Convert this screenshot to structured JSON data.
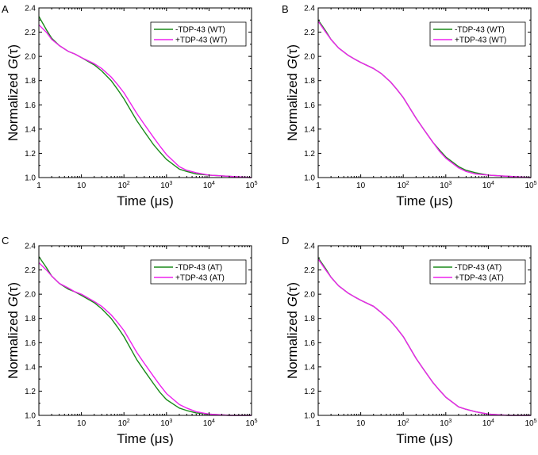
{
  "chart_data": [
    {
      "panel": "A",
      "type": "line",
      "xlabel": "Time (μs)",
      "ylabel": "Normalized G(τ)",
      "x_scale": "log",
      "xlim": [
        1,
        100000
      ],
      "ylim": [
        1.0,
        2.4
      ],
      "xticks": [
        "1",
        "10",
        "10^2",
        "10^3",
        "10^4",
        "10^5"
      ],
      "yticks": [
        "1.0",
        "1.2",
        "1.4",
        "1.6",
        "1.8",
        "2.0",
        "2.2",
        "2.4"
      ],
      "legend_position": "top-right",
      "grid": false,
      "series": [
        {
          "name": "-TDP-43 (WT)",
          "color": "#1a8a1a",
          "x": [
            1,
            1.5,
            2,
            3,
            5,
            7,
            10,
            20,
            30,
            50,
            70,
            100,
            200,
            300,
            500,
            700,
            1000,
            2000,
            3000,
            5000,
            10000,
            30000,
            100000
          ],
          "y": [
            2.33,
            2.22,
            2.15,
            2.09,
            2.04,
            2.02,
            1.99,
            1.93,
            1.88,
            1.8,
            1.73,
            1.65,
            1.47,
            1.38,
            1.27,
            1.21,
            1.15,
            1.07,
            1.05,
            1.03,
            1.02,
            1.01,
            1.0
          ]
        },
        {
          "name": "+TDP-43 (WT)",
          "color": "#ee22ee",
          "x": [
            1,
            1.5,
            2,
            3,
            5,
            7,
            10,
            20,
            30,
            50,
            70,
            100,
            200,
            300,
            500,
            700,
            1000,
            2000,
            3000,
            5000,
            10000,
            30000,
            100000
          ],
          "y": [
            2.26,
            2.2,
            2.14,
            2.09,
            2.04,
            2.02,
            1.99,
            1.94,
            1.9,
            1.83,
            1.77,
            1.7,
            1.53,
            1.44,
            1.33,
            1.26,
            1.19,
            1.09,
            1.06,
            1.04,
            1.02,
            1.01,
            1.0
          ]
        }
      ]
    },
    {
      "panel": "B",
      "type": "line",
      "xlabel": "Time (μs)",
      "ylabel": "Normalized G(τ)",
      "x_scale": "log",
      "xlim": [
        1,
        100000
      ],
      "ylim": [
        1.0,
        2.4
      ],
      "xticks": [
        "1",
        "10",
        "10^2",
        "10^3",
        "10^4",
        "10^5"
      ],
      "yticks": [
        "1.0",
        "1.2",
        "1.4",
        "1.6",
        "1.8",
        "2.0",
        "2.2",
        "2.4"
      ],
      "legend_position": "top-right",
      "grid": false,
      "series": [
        {
          "name": "-TDP-43 (WT)",
          "color": "#1a8a1a",
          "x": [
            1,
            1.5,
            2,
            3,
            5,
            7,
            10,
            20,
            30,
            50,
            70,
            100,
            200,
            300,
            500,
            700,
            1000,
            2000,
            3000,
            5000,
            10000,
            30000,
            100000
          ],
          "y": [
            2.3,
            2.21,
            2.14,
            2.07,
            2.01,
            1.98,
            1.95,
            1.9,
            1.86,
            1.79,
            1.73,
            1.66,
            1.49,
            1.4,
            1.29,
            1.23,
            1.17,
            1.09,
            1.06,
            1.04,
            1.02,
            1.01,
            1.0
          ]
        },
        {
          "name": "+TDP-43 (WT)",
          "color": "#ee22ee",
          "x": [
            1,
            1.5,
            2,
            3,
            5,
            7,
            10,
            20,
            30,
            50,
            70,
            100,
            200,
            300,
            500,
            700,
            1000,
            2000,
            3000,
            5000,
            10000,
            30000,
            100000
          ],
          "y": [
            2.29,
            2.2,
            2.14,
            2.07,
            2.01,
            1.98,
            1.95,
            1.9,
            1.86,
            1.79,
            1.73,
            1.66,
            1.49,
            1.4,
            1.29,
            1.22,
            1.16,
            1.08,
            1.05,
            1.03,
            1.02,
            1.01,
            1.0
          ]
        }
      ]
    },
    {
      "panel": "C",
      "type": "line",
      "xlabel": "Time (μs)",
      "ylabel": "Normalized G(τ)",
      "x_scale": "log",
      "xlim": [
        1,
        100000
      ],
      "ylim": [
        1.0,
        2.4
      ],
      "xticks": [
        "1",
        "10",
        "10^2",
        "10^3",
        "10^4",
        "10^5"
      ],
      "yticks": [
        "1.0",
        "1.2",
        "1.4",
        "1.6",
        "1.8",
        "2.0",
        "2.2",
        "2.4"
      ],
      "legend_position": "top-right",
      "grid": false,
      "series": [
        {
          "name": "-TDP-43 (AT)",
          "color": "#1a8a1a",
          "x": [
            1,
            1.5,
            2,
            3,
            5,
            7,
            10,
            20,
            30,
            50,
            70,
            100,
            200,
            300,
            500,
            700,
            1000,
            2000,
            3000,
            5000,
            10000,
            30000,
            100000
          ],
          "y": [
            2.31,
            2.22,
            2.15,
            2.09,
            2.04,
            2.02,
            1.99,
            1.93,
            1.88,
            1.8,
            1.73,
            1.65,
            1.46,
            1.37,
            1.26,
            1.19,
            1.13,
            1.06,
            1.04,
            1.02,
            1.01,
            1.0,
            1.0
          ]
        },
        {
          "name": "+TDP-43 (AT)",
          "color": "#ee22ee",
          "x": [
            1,
            1.5,
            2,
            3,
            5,
            7,
            10,
            20,
            30,
            50,
            70,
            100,
            200,
            300,
            500,
            700,
            1000,
            2000,
            3000,
            5000,
            10000,
            30000,
            100000
          ],
          "y": [
            2.26,
            2.2,
            2.15,
            2.09,
            2.05,
            2.02,
            2.0,
            1.94,
            1.9,
            1.83,
            1.77,
            1.7,
            1.52,
            1.43,
            1.32,
            1.25,
            1.18,
            1.09,
            1.06,
            1.03,
            1.01,
            1.0,
            1.0
          ]
        }
      ]
    },
    {
      "panel": "D",
      "type": "line",
      "xlabel": "Time (μs)",
      "ylabel": "Normalized G(τ)",
      "x_scale": "log",
      "xlim": [
        1,
        100000
      ],
      "ylim": [
        1.0,
        2.4
      ],
      "xticks": [
        "1",
        "10",
        "10^2",
        "10^3",
        "10^4",
        "10^5"
      ],
      "yticks": [
        "1.0",
        "1.2",
        "1.4",
        "1.6",
        "1.8",
        "2.0",
        "2.2",
        "2.4"
      ],
      "legend_position": "top-right",
      "grid": false,
      "series": [
        {
          "name": "-TDP-43 (AT)",
          "color": "#1a8a1a",
          "x": [
            1,
            1.5,
            2,
            3,
            5,
            7,
            10,
            20,
            30,
            50,
            70,
            100,
            200,
            300,
            500,
            700,
            1000,
            2000,
            3000,
            5000,
            10000,
            30000,
            100000
          ],
          "y": [
            2.3,
            2.21,
            2.14,
            2.07,
            2.01,
            1.98,
            1.95,
            1.9,
            1.85,
            1.78,
            1.72,
            1.65,
            1.47,
            1.38,
            1.27,
            1.21,
            1.15,
            1.07,
            1.05,
            1.03,
            1.01,
            1.0,
            1.0
          ]
        },
        {
          "name": "+TDP-43 (AT)",
          "color": "#ee22ee",
          "x": [
            1,
            1.5,
            2,
            3,
            5,
            7,
            10,
            20,
            30,
            50,
            70,
            100,
            200,
            300,
            500,
            700,
            1000,
            2000,
            3000,
            5000,
            10000,
            30000,
            100000
          ],
          "y": [
            2.29,
            2.2,
            2.14,
            2.07,
            2.01,
            1.98,
            1.95,
            1.9,
            1.85,
            1.78,
            1.72,
            1.65,
            1.47,
            1.38,
            1.27,
            1.21,
            1.15,
            1.07,
            1.05,
            1.03,
            1.01,
            1.0,
            1.0
          ]
        }
      ]
    }
  ]
}
